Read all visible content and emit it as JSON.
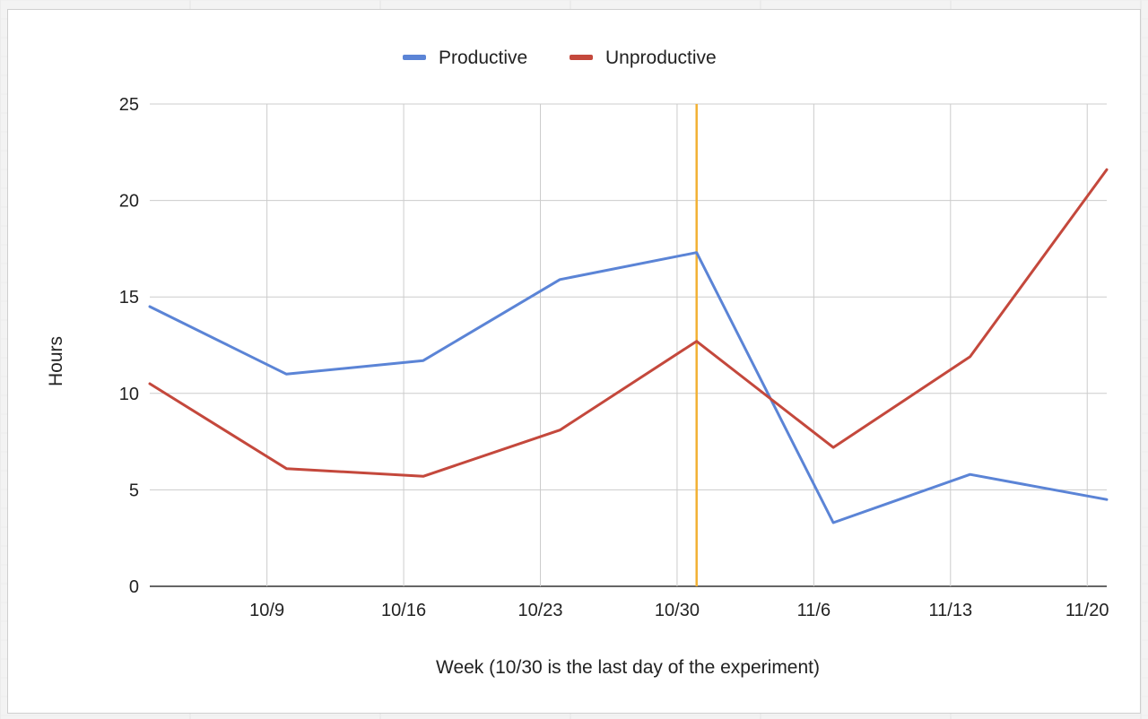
{
  "chart_data": {
    "type": "line",
    "title": "",
    "xlabel": "Week (10/30 is the last day of the experiment)",
    "ylabel": "Hours",
    "ylim": [
      0,
      25
    ],
    "yticks": [
      "0",
      "5",
      "10",
      "15",
      "20",
      "25"
    ],
    "x_ticks": [
      "10/9",
      "10/16",
      "10/23",
      "10/30",
      "11/6",
      "11/13",
      "11/20"
    ],
    "x_domain": [
      "2023-10-03",
      "2023-11-21"
    ],
    "grid": true,
    "legend_position": "top",
    "marker_line": {
      "date": "2023-10-31",
      "color": "#f2b134"
    },
    "series": [
      {
        "name": "Productive",
        "color": "#5b84d6",
        "points": [
          {
            "date": "2023-10-03",
            "value": 14.5
          },
          {
            "date": "2023-10-10",
            "value": 11.0
          },
          {
            "date": "2023-10-17",
            "value": 11.7
          },
          {
            "date": "2023-10-24",
            "value": 15.9
          },
          {
            "date": "2023-10-31",
            "value": 17.3
          },
          {
            "date": "2023-11-07",
            "value": 3.3
          },
          {
            "date": "2023-11-14",
            "value": 5.8
          },
          {
            "date": "2023-11-21",
            "value": 4.5
          }
        ]
      },
      {
        "name": "Unproductive",
        "color": "#c4483c",
        "points": [
          {
            "date": "2023-10-03",
            "value": 10.5
          },
          {
            "date": "2023-10-10",
            "value": 6.1
          },
          {
            "date": "2023-10-17",
            "value": 5.7
          },
          {
            "date": "2023-10-24",
            "value": 8.1
          },
          {
            "date": "2023-10-31",
            "value": 12.7
          },
          {
            "date": "2023-11-07",
            "value": 7.2
          },
          {
            "date": "2023-11-14",
            "value": 11.9
          },
          {
            "date": "2023-11-21",
            "value": 21.6
          }
        ]
      }
    ]
  }
}
